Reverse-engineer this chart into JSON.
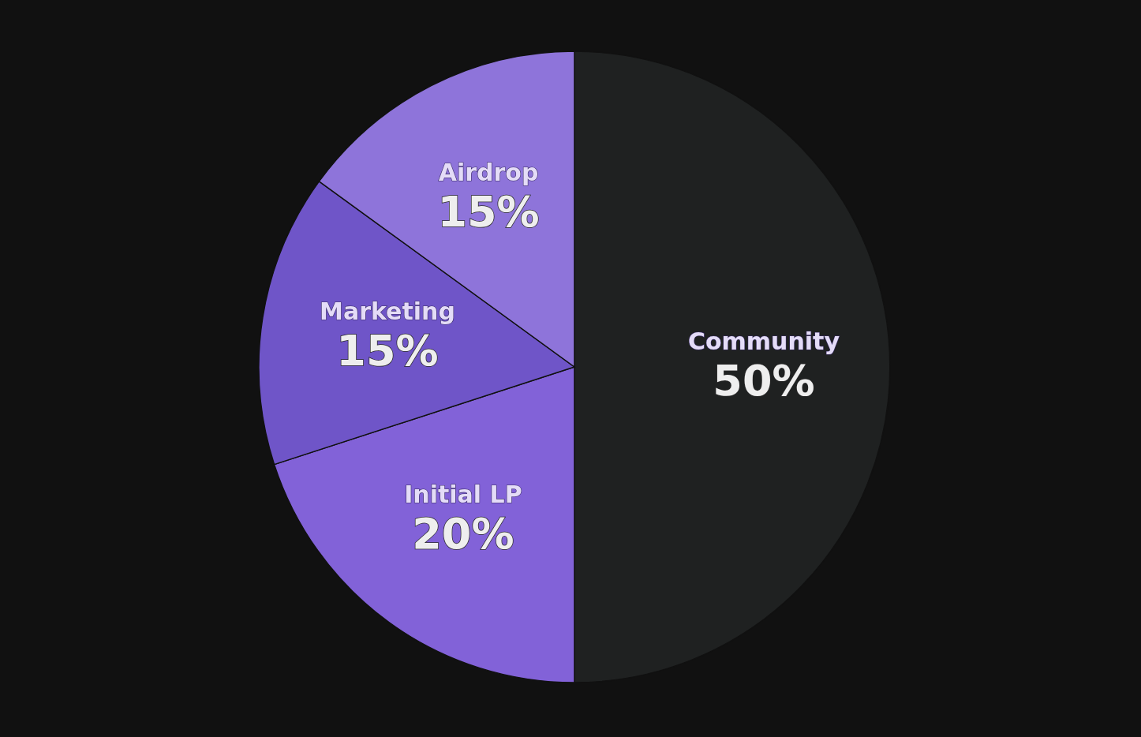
{
  "chart_data": {
    "type": "pie",
    "categories": [
      "Community",
      "Initial LP",
      "Marketing",
      "Airdrop"
    ],
    "values": [
      50,
      20,
      15,
      15
    ],
    "colors": [
      "#1f2121",
      "#8262d8",
      "#6f55c8",
      "#8e74da"
    ],
    "value_labels": [
      "50%",
      "20%",
      "15%",
      "15%"
    ]
  }
}
